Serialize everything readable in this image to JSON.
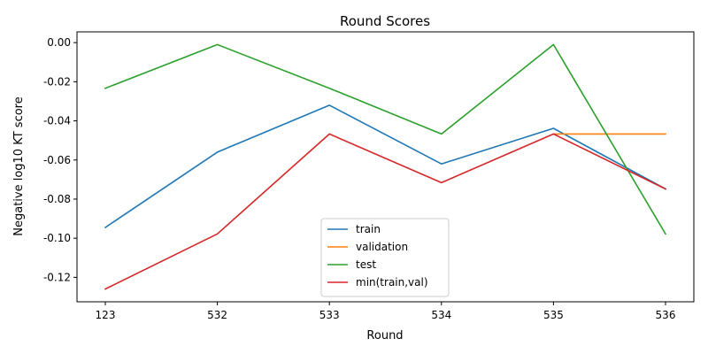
{
  "chart_data": {
    "type": "line",
    "title": "Round Scores",
    "xlabel": "Round",
    "ylabel": "Negative log10 KT score",
    "categories": [
      "123",
      "532",
      "533",
      "534",
      "535",
      "536"
    ],
    "ylim": [
      -0.1325,
      0.0055
    ],
    "yticks": [
      "0.00",
      "-0.02",
      "-0.04",
      "-0.06",
      "-0.08",
      "-0.10",
      "-0.12"
    ],
    "ytick_values": [
      0.0,
      -0.02,
      -0.04,
      -0.06,
      -0.08,
      -0.1,
      -0.12
    ],
    "grid": false,
    "legend_position": "lower-center",
    "series": [
      {
        "name": "train",
        "color": "#1f77b4",
        "values": [
          -0.0945,
          -0.056,
          -0.032,
          -0.062,
          -0.0438,
          -0.0748
        ]
      },
      {
        "name": "validation",
        "color": "#ff7f0e",
        "values": [
          null,
          null,
          null,
          null,
          -0.0467,
          -0.0467
        ]
      },
      {
        "name": "test",
        "color": "#2ca02c",
        "values": [
          -0.0233,
          -0.001,
          -0.0233,
          -0.0467,
          -0.001,
          -0.0978
        ]
      },
      {
        "name": "min(train,val)",
        "color": "#d62728",
        "values": [
          -0.126,
          -0.0978,
          -0.0467,
          -0.0716,
          -0.0467,
          -0.0748
        ]
      }
    ]
  }
}
